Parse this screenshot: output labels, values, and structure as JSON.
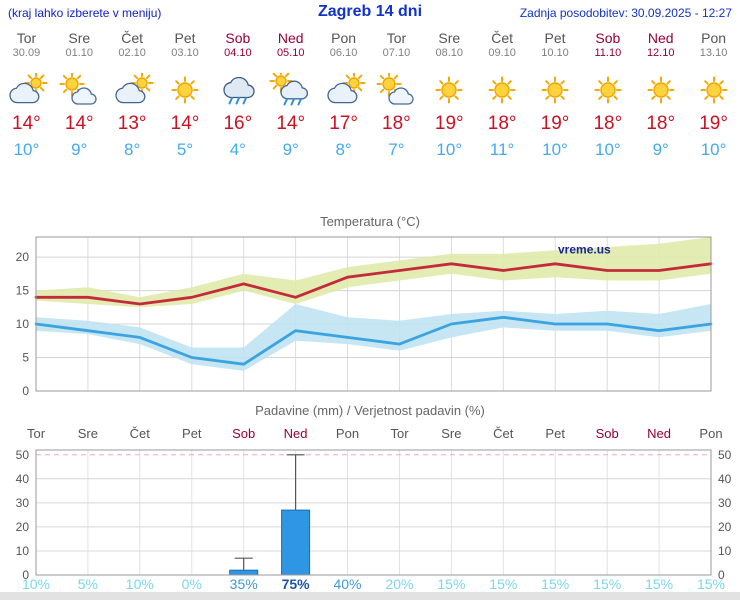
{
  "header": {
    "note": "(kraj lahko izberete v meniju)",
    "title": "Zagreb 14 dni",
    "updated": "Zadnja posodobitev: 30.09.2025 - 12:27"
  },
  "days": [
    {
      "name": "Tor",
      "date": "30.09",
      "icon": "mostly-cloudy",
      "tmax": "14°",
      "tmin": "10°",
      "weekend": false
    },
    {
      "name": "Sre",
      "date": "01.10",
      "icon": "partly-cloudy",
      "tmax": "14°",
      "tmin": "9°",
      "weekend": false
    },
    {
      "name": "Čet",
      "date": "02.10",
      "icon": "mostly-cloudy",
      "tmax": "13°",
      "tmin": "8°",
      "weekend": false
    },
    {
      "name": "Pet",
      "date": "03.10",
      "icon": "sunny",
      "tmax": "14°",
      "tmin": "5°",
      "weekend": false
    },
    {
      "name": "Sob",
      "date": "04.10",
      "icon": "rain",
      "tmax": "16°",
      "tmin": "4°",
      "weekend": true
    },
    {
      "name": "Ned",
      "date": "05.10",
      "icon": "rain-sun",
      "tmax": "14°",
      "tmin": "9°",
      "weekend": true
    },
    {
      "name": "Pon",
      "date": "06.10",
      "icon": "mostly-cloudy",
      "tmax": "17°",
      "tmin": "8°",
      "weekend": false
    },
    {
      "name": "Tor",
      "date": "07.10",
      "icon": "partly-cloudy",
      "tmax": "18°",
      "tmin": "7°",
      "weekend": false
    },
    {
      "name": "Sre",
      "date": "08.10",
      "icon": "sunny",
      "tmax": "19°",
      "tmin": "10°",
      "weekend": false
    },
    {
      "name": "Čet",
      "date": "09.10",
      "icon": "sunny",
      "tmax": "18°",
      "tmin": "11°",
      "weekend": false
    },
    {
      "name": "Pet",
      "date": "10.10",
      "icon": "sunny",
      "tmax": "19°",
      "tmin": "10°",
      "weekend": false
    },
    {
      "name": "Sob",
      "date": "11.10",
      "icon": "sunny",
      "tmax": "18°",
      "tmin": "10°",
      "weekend": true
    },
    {
      "name": "Ned",
      "date": "12.10",
      "icon": "sunny",
      "tmax": "18°",
      "tmin": "9°",
      "weekend": true
    },
    {
      "name": "Pon",
      "date": "13.10",
      "icon": "sunny",
      "tmax": "19°",
      "tmin": "10°",
      "weekend": false
    }
  ],
  "chart_data": [
    {
      "type": "line",
      "title": "Temperatura (°C)",
      "watermark": "vreme.us",
      "ylim": [
        0,
        23
      ],
      "yticks": [
        0,
        5,
        10,
        15,
        20
      ],
      "x_count": 14,
      "series": [
        {
          "name": "max-temperature",
          "color": "#c42b3a",
          "band_color": "#dfeaa8",
          "values": [
            14,
            14,
            13,
            14,
            16,
            14,
            17,
            18,
            19,
            18,
            19,
            18,
            18,
            19
          ],
          "band_upper": [
            15,
            15.5,
            14,
            15.5,
            17.5,
            16.5,
            18.5,
            19.5,
            20.5,
            20.5,
            21,
            21.5,
            22,
            23
          ],
          "band_lower": [
            13.5,
            13,
            12.5,
            13,
            15,
            13,
            15.5,
            16.5,
            17.5,
            16.5,
            17,
            16.5,
            16.5,
            17.5
          ]
        },
        {
          "name": "min-temperature",
          "color": "#3aa3e0",
          "band_color": "#bfe3f2",
          "values": [
            10,
            9,
            8,
            5,
            4,
            9,
            8,
            7,
            10,
            11,
            10,
            10,
            9,
            10
          ],
          "band_upper": [
            11,
            10.5,
            9.5,
            6.5,
            6.5,
            13,
            11,
            10.5,
            11.5,
            12,
            11.5,
            12,
            11.5,
            13
          ],
          "band_lower": [
            9,
            8.5,
            7,
            4,
            3,
            7.5,
            7,
            6,
            8,
            9.5,
            9,
            9,
            8,
            9
          ]
        }
      ]
    },
    {
      "type": "bar",
      "title": "Padavine (mm) / Verjetnost padavin (%)",
      "categories": [
        "Tor",
        "Sre",
        "Čet",
        "Pet",
        "Sob",
        "Ned",
        "Pon",
        "Tor",
        "Sre",
        "Čet",
        "Pet",
        "Sob",
        "Ned",
        "Pon"
      ],
      "weekend_flags": [
        false,
        false,
        false,
        false,
        true,
        true,
        false,
        false,
        false,
        false,
        false,
        true,
        true,
        false
      ],
      "values": [
        0,
        0,
        0,
        0,
        2,
        27,
        0,
        0,
        0,
        0,
        0,
        0,
        0,
        0
      ],
      "whisker_low": [
        null,
        null,
        null,
        null,
        1,
        10,
        null,
        null,
        null,
        null,
        null,
        null,
        null,
        null
      ],
      "whisker_high": [
        null,
        null,
        null,
        null,
        7,
        50,
        null,
        null,
        null,
        null,
        null,
        null,
        null,
        null
      ],
      "probabilities_pct": [
        "10%",
        "5%",
        "10%",
        "0%",
        "35%",
        "75%",
        "40%",
        "20%",
        "15%",
        "15%",
        "15%",
        "15%",
        "15%",
        "15%"
      ],
      "ylim": [
        0,
        52
      ],
      "yticks": [
        0,
        10,
        20,
        30,
        40,
        50
      ]
    }
  ],
  "colors": {
    "header_blue": "#1133cc",
    "weekday_gray": "#555555",
    "weekend_red": "#990033",
    "tmax_red": "#cc1122",
    "tmin_blue": "#44aaee",
    "bar_blue": "#2e96e2",
    "pop_low": "#7bd6ee",
    "pop_mid": "#3e9ad6",
    "pop_high": "#1c54a8"
  }
}
